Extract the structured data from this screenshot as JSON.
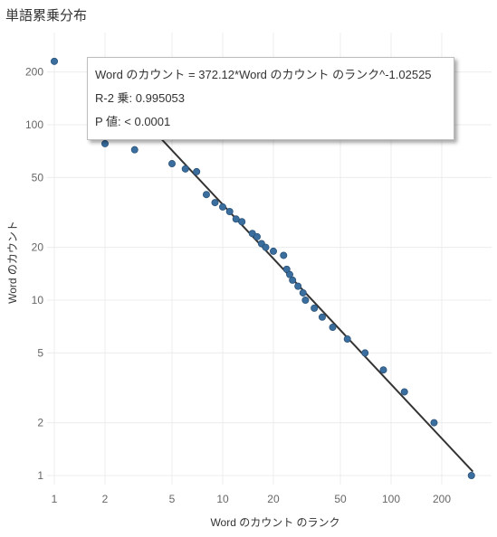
{
  "title": "単語累乗分布",
  "tooltip": {
    "equation": "Word のカウント = 372.12*Word のカウント のランク^-1.02525",
    "r_squared": "R-2 乗: 0.995053",
    "p_value": "P 値: < 0.0001"
  },
  "colors": {
    "point": "#3a6e9f",
    "point_edge": "#2c5378",
    "trend": "#333333",
    "grid": "#ececec"
  },
  "chart_data": {
    "type": "scatter",
    "title": "単語累乗分布",
    "xlabel": "Word のカウント のランク",
    "ylabel": "Word のカウント",
    "xscale": "log",
    "yscale": "log",
    "xlim": [
      1,
      300
    ],
    "ylim": [
      1,
      300
    ],
    "grid": true,
    "x_ticks": [
      1,
      2,
      5,
      10,
      20,
      50,
      100,
      200
    ],
    "x_tick_labels": [
      "1",
      "2",
      "5",
      "10",
      "20",
      "50",
      "100",
      "200"
    ],
    "y_ticks": [
      1,
      2,
      5,
      10,
      20,
      50,
      100,
      200
    ],
    "y_tick_labels": [
      "1",
      "2",
      "5",
      "10",
      "20",
      "50",
      "100",
      "200"
    ],
    "points": [
      [
        1,
        230
      ],
      [
        2,
        78
      ],
      [
        3,
        72
      ],
      [
        5,
        60
      ],
      [
        6,
        56
      ],
      [
        7,
        54
      ],
      [
        8,
        40
      ],
      [
        9,
        36
      ],
      [
        10,
        34
      ],
      [
        11,
        32
      ],
      [
        12,
        29
      ],
      [
        13,
        28
      ],
      [
        15,
        24
      ],
      [
        16,
        23
      ],
      [
        17,
        21
      ],
      [
        18,
        20
      ],
      [
        20,
        19
      ],
      [
        23,
        18
      ],
      [
        24,
        15
      ],
      [
        25,
        14
      ],
      [
        26,
        13
      ],
      [
        28,
        12
      ],
      [
        30,
        11
      ],
      [
        31,
        10
      ],
      [
        35,
        9
      ],
      [
        39,
        8
      ],
      [
        45,
        7
      ],
      [
        55,
        6
      ],
      [
        70,
        5
      ],
      [
        90,
        4
      ],
      [
        120,
        3
      ],
      [
        180,
        2
      ],
      [
        300,
        1
      ]
    ],
    "trend_line": {
      "a": 372.12,
      "b": -1.02525,
      "x_range": [
        1,
        300
      ]
    }
  }
}
